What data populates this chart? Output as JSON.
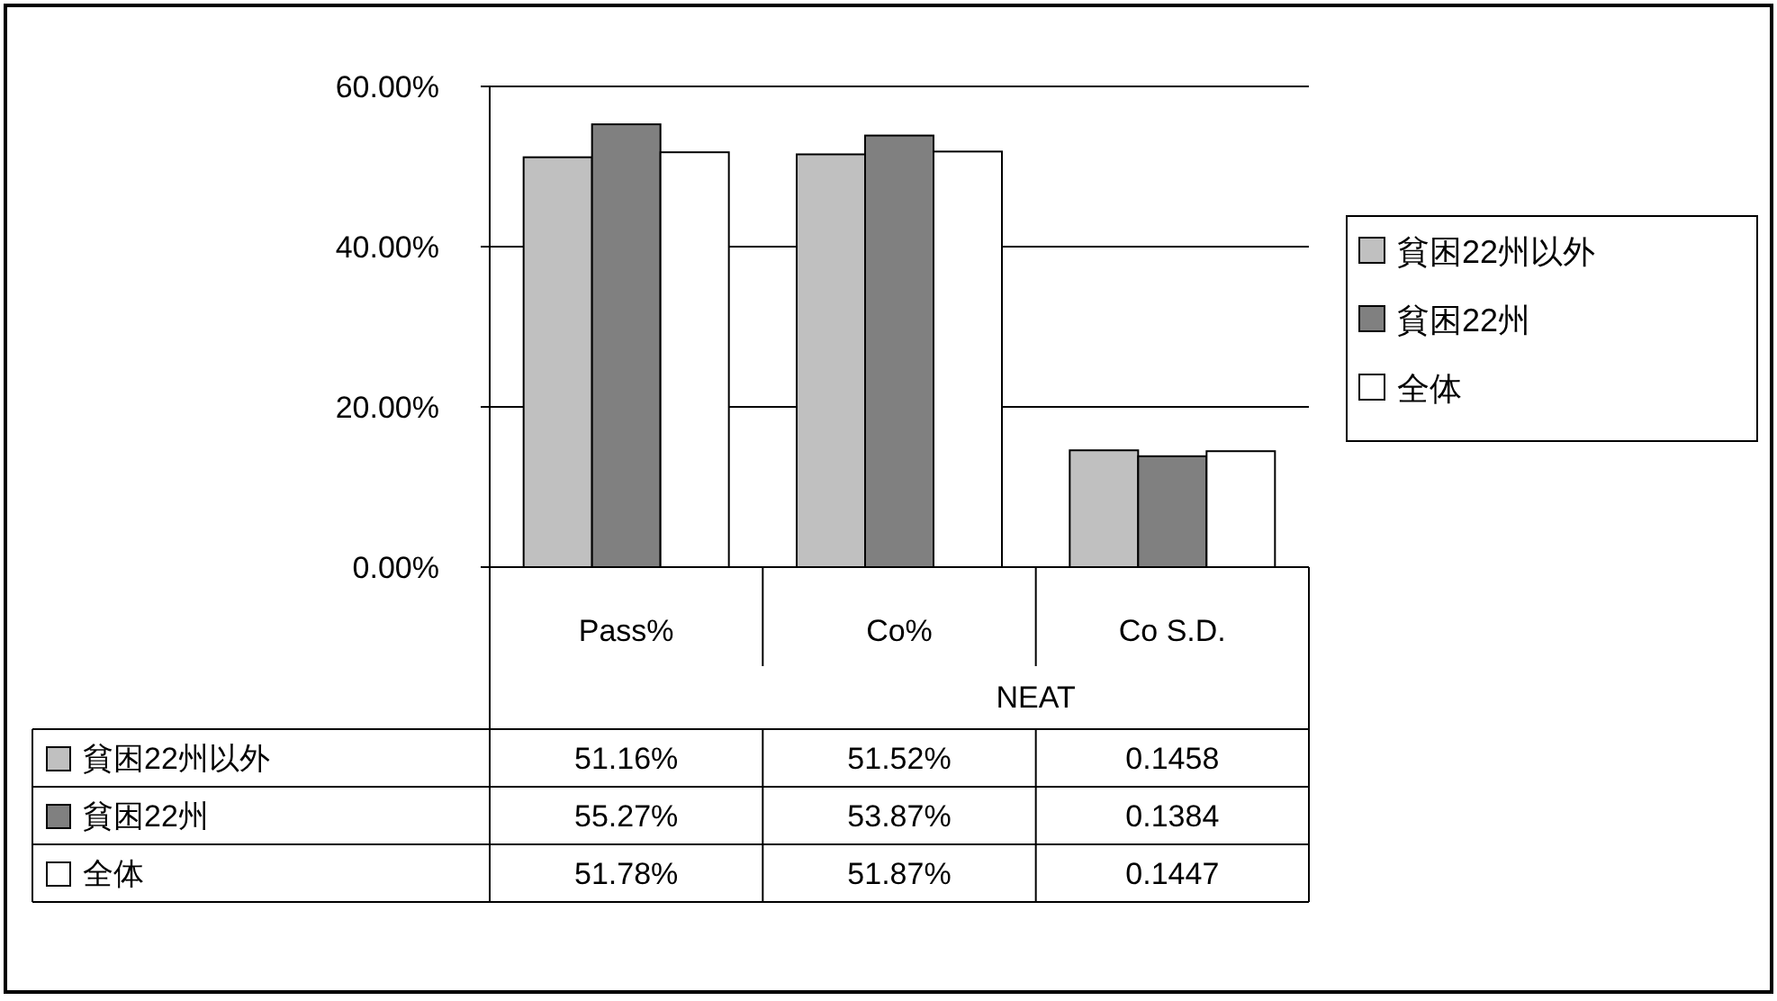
{
  "chart_data": {
    "type": "bar",
    "categories": [
      "Pass%",
      "Co%",
      "Co S.D."
    ],
    "series": [
      {
        "name": "貧困22州以外",
        "color": "#c0c0c0",
        "values": [
          0.5116,
          0.5152,
          0.1458
        ],
        "value_labels": [
          "51.16%",
          "51.52%",
          "0.1458"
        ]
      },
      {
        "name": "貧困22州",
        "color": "#808080",
        "values": [
          0.5527,
          0.5387,
          0.1384
        ],
        "value_labels": [
          "55.27%",
          "53.87%",
          "0.1384"
        ]
      },
      {
        "name": "全体",
        "color": "#ffffff",
        "values": [
          0.5178,
          0.5187,
          0.1447
        ],
        "value_labels": [
          "51.78%",
          "51.87%",
          "0.1447"
        ]
      }
    ],
    "annotations": [
      "NEAT"
    ],
    "ylim": [
      0,
      0.6
    ],
    "yticks": [
      {
        "value": 0,
        "label": "0.00%"
      },
      {
        "value": 0.2,
        "label": "20.00%"
      },
      {
        "value": 0.4,
        "label": "40.00%"
      },
      {
        "value": 0.6,
        "label": "60.00%"
      }
    ],
    "grid": "y",
    "legend": "right"
  }
}
